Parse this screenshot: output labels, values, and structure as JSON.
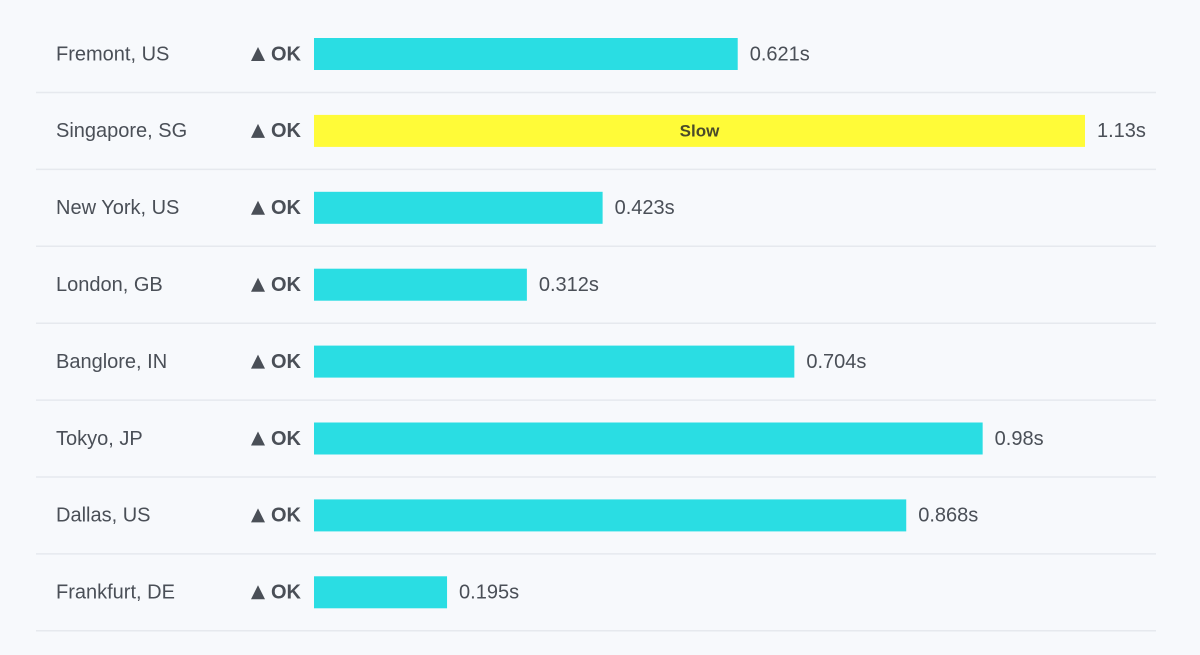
{
  "chart_data": {
    "type": "bar",
    "orientation": "horizontal",
    "categories": [
      "Fremont, US",
      "Singapore, SG",
      "New York, US",
      "London, GB",
      "Banglore, IN",
      "Tokyo, JP",
      "Dallas, US",
      "Frankfurt, DE"
    ],
    "statuses": [
      "OK",
      "OK",
      "OK",
      "OK",
      "OK",
      "OK",
      "OK",
      "OK"
    ],
    "values": [
      0.621,
      1.13,
      0.423,
      0.312,
      0.704,
      0.98,
      0.868,
      0.195
    ],
    "value_labels": [
      "0.621s",
      "1.13s",
      "0.423s",
      "0.312s",
      "0.704s",
      "0.98s",
      "0.868s",
      "0.195s"
    ],
    "flags": [
      null,
      "Slow",
      null,
      null,
      null,
      null,
      null,
      null
    ],
    "color": "#2adde3",
    "flag_color": "#fffb38"
  }
}
